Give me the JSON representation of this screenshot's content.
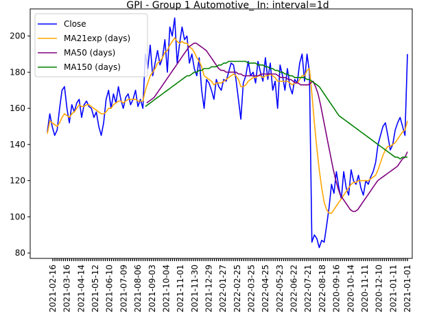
{
  "chart_data": {
    "type": "line",
    "title": "GPI - Group 1 Automotive_ In: interval=1d",
    "xlabel": "",
    "ylabel": "",
    "ylim": [
      77,
      215
    ],
    "yticks": [
      80,
      100,
      120,
      140,
      160,
      180,
      200
    ],
    "grid": false,
    "legend_position": "top-left",
    "x_tick_labels": [
      "2021-02-16",
      "2021-03-16",
      "2021-04-14",
      "2021-05-12",
      "2021-06-10",
      "2021-07-09",
      "2021-08-06",
      "2021-09-03",
      "2021-10-04",
      "2021-11-01",
      "2021-11-30",
      "2021-12-29",
      "2022-01-27",
      "2022-02-25",
      "2022-03-25",
      "2022-04-25",
      "2022-05-23",
      "2022-06-22",
      "2022-07-21",
      "2022-08-18",
      "2020-09-16",
      "2020-10-14",
      "2020-11-11",
      "2020-12-10",
      "2021-01-11",
      "2021-01-01"
    ],
    "series": [
      {
        "name": "Close",
        "color": "#0000ff",
        "values": [
          147,
          157,
          150,
          145,
          148,
          160,
          170,
          172,
          160,
          152,
          162,
          158,
          163,
          165,
          155,
          162,
          164,
          161,
          160,
          155,
          158,
          150,
          145,
          152,
          165,
          170,
          160,
          168,
          163,
          172,
          165,
          160,
          166,
          168,
          162,
          165,
          170,
          161,
          165,
          160,
          190,
          182,
          195,
          178,
          185,
          192,
          184,
          188,
          198,
          180,
          205,
          200,
          210,
          185,
          196,
          205,
          198,
          200,
          185,
          190,
          182,
          178,
          188,
          170,
          160,
          176,
          174,
          170,
          165,
          176,
          172,
          170,
          176,
          175,
          180,
          185,
          184,
          176,
          165,
          154,
          174,
          178,
          186,
          178,
          180,
          174,
          186,
          180,
          175,
          188,
          176,
          185,
          170,
          175,
          160,
          184,
          178,
          170,
          182,
          172,
          168,
          176,
          174,
          185,
          190,
          175,
          190,
          180,
          86,
          90,
          88,
          83,
          87,
          86,
          95,
          105,
          118,
          113,
          125,
          116,
          110,
          125,
          116,
          112,
          126,
          120,
          118,
          123,
          116,
          112,
          120,
          118,
          122,
          125,
          130,
          140,
          145,
          150,
          152,
          145,
          137,
          140,
          148,
          152,
          155,
          150,
          145,
          190
        ]
      },
      {
        "name": "MA21exp (days)",
        "color": "#ffa500",
        "values": [
          146,
          153,
          152,
          151,
          150,
          152,
          155,
          157,
          156,
          155,
          157,
          158,
          160,
          162,
          161,
          161,
          162,
          162,
          161,
          160,
          159,
          158,
          157,
          157,
          158,
          160,
          160,
          162,
          163,
          164,
          164,
          163,
          164,
          165,
          165,
          165,
          165,
          164,
          164,
          164,
          170,
          174,
          178,
          180,
          182,
          185,
          186,
          188,
          191,
          192,
          195,
          197,
          199,
          197,
          196,
          197,
          196,
          196,
          194,
          193,
          191,
          188,
          186,
          183,
          178,
          177,
          176,
          175,
          173,
          174,
          174,
          174,
          175,
          176,
          177,
          178,
          179,
          178,
          176,
          172,
          172,
          173,
          175,
          176,
          177,
          177,
          178,
          178,
          177,
          178,
          178,
          179,
          178,
          177,
          175,
          175,
          175,
          175,
          175,
          174,
          173,
          174,
          174,
          176,
          178,
          178,
          181,
          182,
          168,
          152,
          138,
          126,
          116,
          108,
          104,
          102,
          102,
          104,
          106,
          108,
          110,
          112,
          114,
          116,
          118,
          119,
          119,
          120,
          120,
          120,
          120,
          120,
          121,
          122,
          123,
          126,
          130,
          134,
          137,
          139,
          139,
          140,
          141,
          143,
          145,
          147,
          148,
          153
        ]
      },
      {
        "name": "MA50 (days)",
        "color": "#800080",
        "values": [
          null,
          null,
          null,
          null,
          null,
          null,
          null,
          null,
          null,
          null,
          null,
          null,
          null,
          null,
          null,
          null,
          null,
          null,
          null,
          null,
          null,
          null,
          null,
          null,
          null,
          null,
          null,
          null,
          null,
          null,
          null,
          null,
          null,
          null,
          null,
          null,
          null,
          null,
          null,
          null,
          163,
          164,
          165,
          166,
          168,
          170,
          172,
          174,
          176,
          178,
          180,
          182,
          184,
          186,
          188,
          190,
          192,
          194,
          195,
          196,
          196,
          195,
          194,
          193,
          192,
          190,
          188,
          186,
          184,
          182,
          181,
          181,
          180,
          180,
          180,
          180,
          180,
          179,
          179,
          178,
          178,
          178,
          178,
          178,
          178,
          178,
          179,
          179,
          179,
          179,
          179,
          179,
          179,
          178,
          177,
          177,
          177,
          176,
          176,
          175,
          174,
          174,
          173,
          173,
          173,
          173,
          174,
          175,
          172,
          168,
          162,
          155,
          148,
          141,
          134,
          127,
          121,
          116,
          112,
          110,
          108,
          106,
          104,
          103,
          103,
          104,
          106,
          108,
          110,
          112,
          114,
          116,
          118,
          120,
          121,
          122,
          123,
          124,
          125,
          126,
          127,
          128,
          130,
          132,
          133,
          136
        ]
      },
      {
        "name": "MA150 (days)",
        "color": "#008000",
        "values": [
          null,
          null,
          null,
          null,
          null,
          null,
          null,
          null,
          null,
          null,
          null,
          null,
          null,
          null,
          null,
          null,
          null,
          null,
          null,
          null,
          null,
          null,
          null,
          null,
          null,
          null,
          null,
          null,
          null,
          null,
          null,
          null,
          null,
          null,
          null,
          null,
          null,
          null,
          null,
          null,
          161,
          162,
          163,
          164,
          165,
          166,
          167,
          168,
          169,
          170,
          171,
          172,
          173,
          174,
          175,
          176,
          177,
          178,
          178,
          179,
          180,
          180,
          181,
          181,
          182,
          182,
          182,
          183,
          183,
          183,
          184,
          184,
          185,
          185,
          186,
          186,
          186,
          186,
          186,
          186,
          186,
          186,
          185,
          185,
          185,
          185,
          184,
          184,
          184,
          183,
          183,
          182,
          182,
          181,
          181,
          180,
          180,
          179,
          179,
          178,
          178,
          177,
          177,
          177,
          177,
          177,
          176,
          176,
          175,
          174,
          173,
          172,
          170,
          168,
          166,
          164,
          162,
          160,
          158,
          156,
          155,
          154,
          153,
          152,
          151,
          150,
          149,
          148,
          147,
          146,
          145,
          144,
          143,
          142,
          141,
          140,
          139,
          138,
          137,
          136,
          135,
          134,
          133,
          133,
          132,
          133,
          133,
          133
        ]
      }
    ]
  }
}
